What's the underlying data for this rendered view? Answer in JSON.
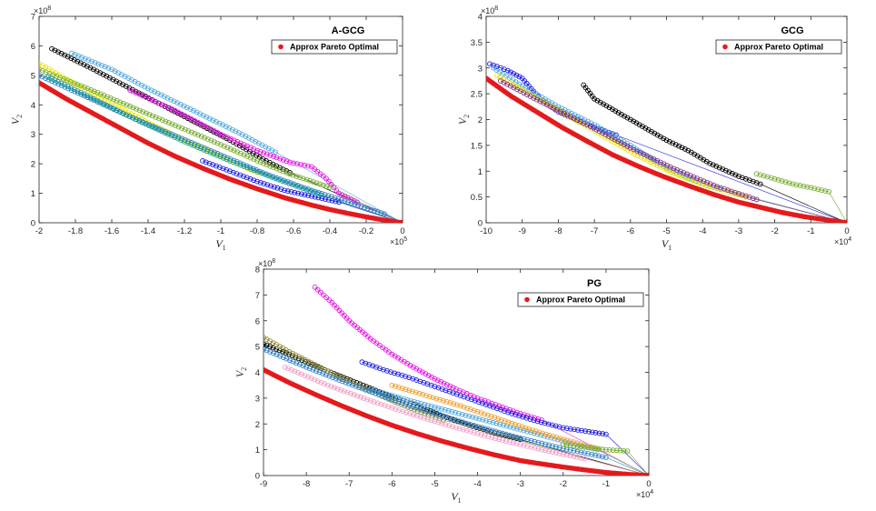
{
  "chart_data": [
    {
      "type": "scatter",
      "title": "A-GCG",
      "xlabel": "V",
      "xlabel_sub": "1",
      "ylabel": "V",
      "ylabel_sub": "2",
      "xlim": [
        -200000,
        0
      ],
      "ylim": [
        0,
        700000000
      ],
      "x_multiplier": "×10",
      "x_multiplier_exp": "5",
      "y_multiplier": "×10",
      "y_multiplier_exp": "8",
      "xticks": [
        -2,
        -1.8,
        -1.6,
        -1.4,
        -1.2,
        -1,
        -0.8,
        -0.6,
        -0.4,
        -0.2,
        0
      ],
      "yticks": [
        0,
        1,
        2,
        3,
        4,
        5,
        6,
        7
      ],
      "legend": {
        "label": "Approx Pareto Optimal",
        "position": "top-right"
      },
      "pareto": {
        "name": "Approx Pareto Optimal",
        "color": "#e31a1c",
        "x": [
          -200000,
          -185000,
          -170000,
          -155000,
          -140000,
          -125000,
          -110000,
          -95000,
          -80000,
          -65000,
          -50000,
          -40000,
          -30000,
          -20000,
          -10000,
          0
        ],
        "y": [
          475000000,
          420000000,
          370000000,
          320000000,
          270000000,
          225000000,
          185000000,
          148000000,
          115000000,
          85000000,
          60000000,
          45000000,
          32000000,
          20000000,
          9000000,
          0
        ]
      },
      "series": [
        {
          "name": "black",
          "color": "#000000",
          "x": [
            -193000,
            -170000,
            -145000,
            -120000,
            -95000,
            -75000,
            -62000
          ],
          "y": [
            590000000,
            520000000,
            440000000,
            360000000,
            280000000,
            210000000,
            170000000
          ]
        },
        {
          "name": "lightblue",
          "color": "#4fa8e0",
          "x": [
            -182000,
            -160000,
            -140000,
            -115000,
            -90000,
            -70000
          ],
          "y": [
            575000000,
            520000000,
            455000000,
            380000000,
            305000000,
            240000000
          ]
        },
        {
          "name": "magenta",
          "color": "#e617e6",
          "x": [
            -150000,
            -125000,
            -100000,
            -80000,
            -62000,
            -50000,
            -42000,
            -35000,
            -25000
          ],
          "y": [
            450000000,
            380000000,
            300000000,
            245000000,
            205000000,
            190000000,
            150000000,
            100000000,
            70000000
          ]
        },
        {
          "name": "yellow",
          "color": "#f2e400",
          "x": [
            -200000,
            -180000,
            -160000,
            -140000,
            -120000,
            -100000,
            -80000
          ],
          "y": [
            540000000,
            470000000,
            405000000,
            340000000,
            280000000,
            225000000,
            170000000
          ]
        },
        {
          "name": "green",
          "color": "#77ac30",
          "x": [
            -200000,
            -175000,
            -150000,
            -125000,
            -100000,
            -80000,
            -62000,
            -40000
          ],
          "y": [
            520000000,
            460000000,
            395000000,
            330000000,
            265000000,
            210000000,
            165000000,
            120000000
          ]
        },
        {
          "name": "steelblue",
          "color": "#2f80c8",
          "x": [
            -200000,
            -175000,
            -150000,
            -125000,
            -100000,
            -75000,
            -50000,
            -30000,
            -10000
          ],
          "y": [
            500000000,
            430000000,
            360000000,
            295000000,
            230000000,
            165000000,
            110000000,
            70000000,
            30000000
          ]
        },
        {
          "name": "blue",
          "color": "#1a1ae6",
          "x": [
            -110000,
            -95000,
            -80000,
            -65000,
            -50000,
            -35000
          ],
          "y": [
            210000000,
            175000000,
            140000000,
            110000000,
            90000000,
            70000000
          ]
        },
        {
          "name": "teal",
          "color": "#1a9a9a",
          "x": [
            -195000,
            -170000,
            -145000,
            -120000,
            -95000,
            -70000,
            -45000
          ],
          "y": [
            495000000,
            420000000,
            345000000,
            275000000,
            210000000,
            150000000,
            95000000
          ]
        }
      ]
    },
    {
      "type": "scatter",
      "title": "GCG",
      "xlabel": "V",
      "xlabel_sub": "1",
      "ylabel": "V",
      "ylabel_sub": "2",
      "xlim": [
        -100000,
        0
      ],
      "ylim": [
        0,
        400000000
      ],
      "x_multiplier": "×10",
      "x_multiplier_exp": "4",
      "y_multiplier": "×10",
      "y_multiplier_exp": "8",
      "xticks": [
        -10,
        -9,
        -8,
        -7,
        -6,
        -5,
        -4,
        -3,
        -2,
        -1,
        0
      ],
      "yticks": [
        0,
        0.5,
        1,
        1.5,
        2,
        2.5,
        3,
        3.5,
        4
      ],
      "legend": {
        "label": "Approx Pareto Optimal",
        "position": "top-right"
      },
      "pareto": {
        "name": "Approx Pareto Optimal",
        "color": "#e31a1c",
        "x": [
          -100000,
          -93000,
          -86000,
          -79000,
          -72000,
          -65000,
          -58000,
          -51000,
          -44000,
          -37000,
          -30000,
          -24000,
          -18000,
          -12000,
          -6000,
          0
        ],
        "y": [
          280000000,
          245000000,
          215000000,
          185000000,
          158000000,
          132000000,
          110000000,
          90000000,
          72000000,
          55000000,
          40000000,
          30000000,
          20000000,
          12000000,
          6000000,
          0
        ]
      },
      "series": [
        {
          "name": "blue",
          "color": "#1a1ae6",
          "x": [
            -99000,
            -94000,
            -90000,
            -85000,
            -80000,
            -72000,
            -64000
          ],
          "y": [
            308000000,
            295000000,
            280000000,
            240000000,
            215000000,
            190000000,
            170000000
          ]
        },
        {
          "name": "black",
          "color": "#000000",
          "x": [
            -73000,
            -70000,
            -65000,
            -60000,
            -55000,
            -50000,
            -44000,
            -38000,
            -30000,
            -24000
          ],
          "y": [
            267000000,
            240000000,
            220000000,
            200000000,
            180000000,
            160000000,
            140000000,
            115000000,
            90000000,
            75000000
          ]
        },
        {
          "name": "lightblue",
          "color": "#4fa8e0",
          "x": [
            -98000,
            -90000,
            -80000,
            -70000,
            -60000,
            -50000,
            -40000,
            -35000
          ],
          "y": [
            300000000,
            265000000,
            225000000,
            190000000,
            150000000,
            105000000,
            75000000,
            65000000
          ]
        },
        {
          "name": "yellow",
          "color": "#f2e400",
          "x": [
            -97000,
            -88000,
            -78000,
            -68000,
            -58000,
            -48000,
            -38000,
            -28000
          ],
          "y": [
            285000000,
            250000000,
            210000000,
            170000000,
            130000000,
            95000000,
            70000000,
            50000000
          ]
        },
        {
          "name": "green",
          "color": "#77ac30",
          "x": [
            -25000,
            -20000,
            -15000,
            -10000,
            -5000
          ],
          "y": [
            95000000,
            85000000,
            75000000,
            68000000,
            60000000
          ]
        },
        {
          "name": "purple",
          "color": "#7e2f8e",
          "x": [
            -96000,
            -85000,
            -72000,
            -60000,
            -48000,
            -36000,
            -25000
          ],
          "y": [
            275000000,
            235000000,
            190000000,
            145000000,
            105000000,
            70000000,
            45000000
          ]
        }
      ]
    },
    {
      "type": "scatter",
      "title": "PG",
      "xlabel": "V",
      "xlabel_sub": "1",
      "ylabel": "V",
      "ylabel_sub": "2",
      "xlim": [
        -90000,
        0
      ],
      "ylim": [
        0,
        800000000
      ],
      "x_multiplier": "×10",
      "x_multiplier_exp": "4",
      "y_multiplier": "×10",
      "y_multiplier_exp": "8",
      "xticks": [
        -9,
        -8,
        -7,
        -6,
        -5,
        -4,
        -3,
        -2,
        -1,
        0
      ],
      "yticks": [
        0,
        1,
        2,
        3,
        4,
        5,
        6,
        7,
        8
      ],
      "legend": {
        "label": "Approx Pareto Optimal",
        "position": "top-right"
      },
      "pareto": {
        "name": "Approx Pareto Optimal",
        "color": "#e31a1c",
        "x": [
          -90000,
          -84000,
          -78000,
          -72000,
          -66000,
          -60000,
          -54000,
          -48000,
          -42000,
          -36000,
          -30000,
          -25000,
          -20000,
          -15000,
          -10000,
          -5000,
          0
        ],
        "y": [
          410000000,
          360000000,
          315000000,
          272000000,
          232000000,
          195000000,
          162000000,
          132000000,
          105000000,
          80000000,
          58000000,
          45000000,
          33000000,
          22000000,
          12000000,
          5000000,
          0
        ]
      },
      "series": [
        {
          "name": "magenta",
          "color": "#e617e6",
          "x": [
            -78000,
            -74000,
            -70000,
            -65000,
            -60000,
            -55000,
            -50000,
            -45000,
            -40000,
            -35000,
            -30000,
            -25000
          ],
          "y": [
            730000000,
            670000000,
            600000000,
            530000000,
            470000000,
            420000000,
            375000000,
            335000000,
            300000000,
            270000000,
            240000000,
            215000000
          ]
        },
        {
          "name": "blue",
          "color": "#1a1ae6",
          "x": [
            -67000,
            -62000,
            -56000,
            -50000,
            -44000,
            -38000,
            -32000,
            -26000,
            -20000,
            -14000,
            -10000
          ],
          "y": [
            440000000,
            410000000,
            380000000,
            345000000,
            310000000,
            275000000,
            240000000,
            210000000,
            185000000,
            170000000,
            160000000
          ]
        },
        {
          "name": "black",
          "color": "#000000",
          "x": [
            -90000,
            -84000,
            -78000,
            -72000,
            -66000,
            -60000,
            -54000,
            -48000,
            -42000,
            -36000,
            -30000
          ],
          "y": [
            510000000,
            470000000,
            425000000,
            385000000,
            345000000,
            305000000,
            270000000,
            230000000,
            195000000,
            165000000,
            140000000
          ]
        },
        {
          "name": "olive",
          "color": "#8c8c3c",
          "x": [
            -90000,
            -84000,
            -78000,
            -72000,
            -66000,
            -60000,
            -54000,
            -48000
          ],
          "y": [
            535000000,
            480000000,
            430000000,
            380000000,
            335000000,
            290000000,
            250000000,
            215000000
          ]
        },
        {
          "name": "lightblue",
          "color": "#4fa8e0",
          "x": [
            -65000,
            -58000,
            -50000,
            -42000,
            -34000,
            -26000,
            -18000,
            -12000
          ],
          "y": [
            335000000,
            300000000,
            265000000,
            230000000,
            195000000,
            160000000,
            125000000,
            100000000
          ]
        },
        {
          "name": "orange",
          "color": "#f0a030",
          "x": [
            -60000,
            -52000,
            -44000,
            -36000,
            -28000,
            -20000,
            -12000
          ],
          "y": [
            350000000,
            310000000,
            270000000,
            225000000,
            180000000,
            140000000,
            105000000
          ]
        },
        {
          "name": "pink",
          "color": "#f29ec8",
          "x": [
            -85000,
            -75000,
            -65000,
            -55000,
            -45000,
            -35000,
            -25000,
            -15000
          ],
          "y": [
            420000000,
            350000000,
            290000000,
            235000000,
            185000000,
            140000000,
            100000000,
            65000000
          ]
        },
        {
          "name": "steelblue",
          "color": "#2f80c8",
          "x": [
            -90000,
            -80000,
            -70000,
            -60000,
            -50000,
            -40000,
            -30000,
            -20000,
            -10000
          ],
          "y": [
            490000000,
            420000000,
            355000000,
            295000000,
            240000000,
            190000000,
            145000000,
            105000000,
            70000000
          ]
        },
        {
          "name": "green",
          "color": "#77ac30",
          "x": [
            -20000,
            -15000,
            -10000,
            -5000
          ],
          "y": [
            120000000,
            110000000,
            100000000,
            95000000
          ]
        }
      ]
    }
  ]
}
